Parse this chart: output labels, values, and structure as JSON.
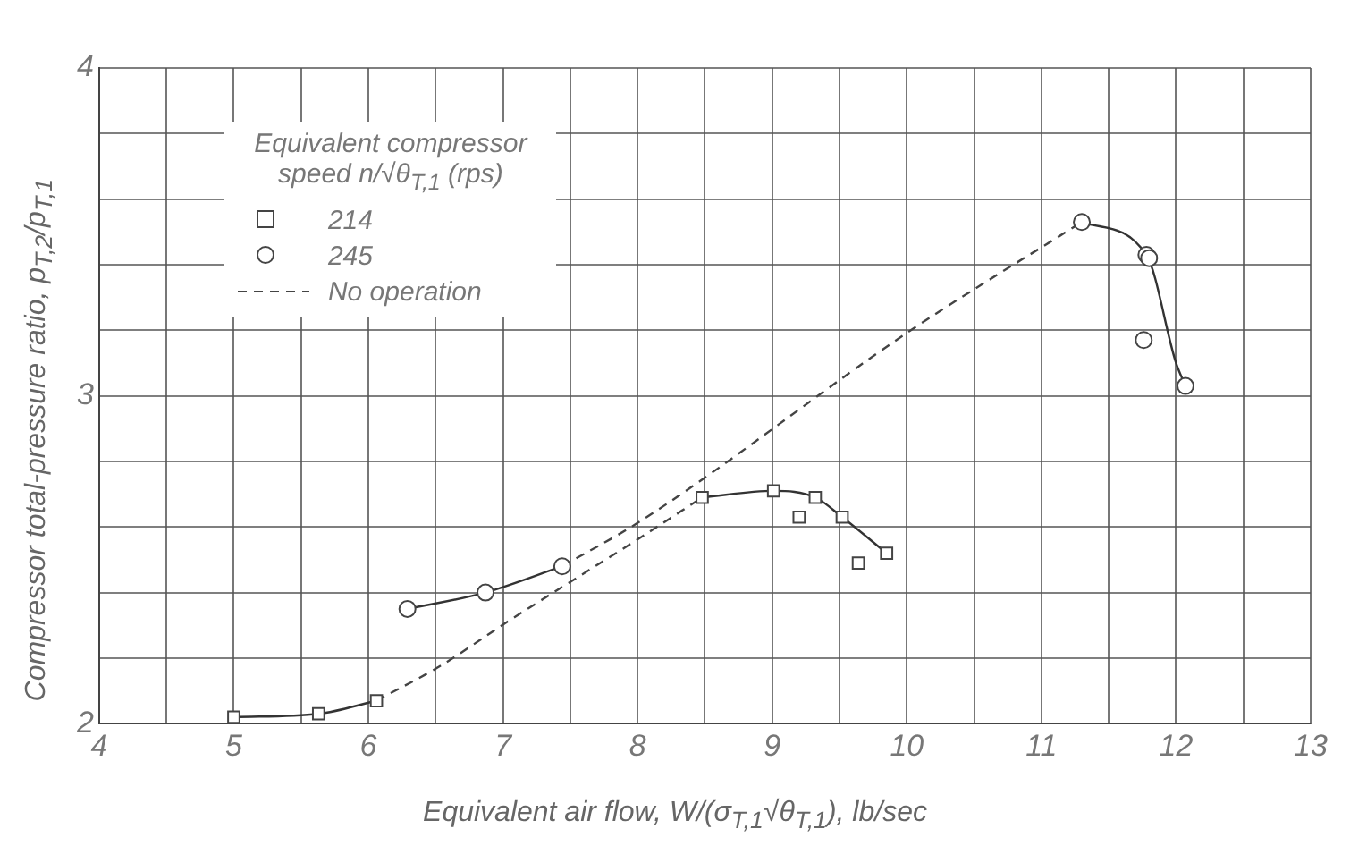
{
  "chart_data": {
    "type": "scatter",
    "xlabel": "Equivalent air flow, W/(σ$_{T,1}$√θ$_{T,1}$), lb/sec",
    "ylabel": "Compressor total-pressure ratio, p$_{T,2}$/p$_{T,1}$",
    "legend_title": "Equivalent compressor speed n/√θ$_{T,1}$ (rps)",
    "legend": "top left",
    "grid": true,
    "xlim": [
      4,
      13
    ],
    "xticks": [
      4,
      {
        "value": 4.5,
        "label": null
      },
      5,
      {
        "value": 5.5,
        "label": null
      },
      6,
      {
        "value": 6.5,
        "label": null
      },
      7,
      {
        "value": 7.5,
        "label": null
      },
      8,
      {
        "value": 8.5,
        "label": null
      },
      9,
      {
        "value": 9.5,
        "label": null
      },
      10,
      {
        "value": 10.5,
        "label": null
      },
      11,
      {
        "value": 11.5,
        "label": null
      },
      12,
      {
        "value": 12.5,
        "label": null
      },
      13
    ],
    "ylim": [
      2,
      4
    ],
    "yticks": [
      2,
      {
        "value": 2.2,
        "label": null
      },
      {
        "value": 2.4,
        "label": null
      },
      {
        "value": 2.6,
        "label": null
      },
      {
        "value": 2.8,
        "label": null
      },
      3,
      {
        "value": 3.2,
        "label": null
      },
      {
        "value": 3.4,
        "label": null
      },
      {
        "value": 3.6,
        "label": null
      },
      {
        "value": 3.8,
        "label": null
      },
      4
    ],
    "series": [
      {
        "name": "214",
        "type": "scatter",
        "marker": "square",
        "color": "#444444",
        "x": [
          5.0,
          5.63,
          6.06,
          8.48,
          9.01,
          9.2,
          9.32,
          9.52,
          9.64,
          9.85
        ],
        "values": [
          2.02,
          2.03,
          2.07,
          2.69,
          2.71,
          2.63,
          2.69,
          2.63,
          2.49,
          2.52
        ]
      },
      {
        "name": "245",
        "type": "scatter",
        "marker": "circle",
        "color": "#444444",
        "x": [
          6.29,
          6.87,
          7.44,
          11.3,
          11.76,
          11.78,
          11.8,
          12.07
        ],
        "values": [
          2.35,
          2.4,
          2.48,
          3.53,
          3.17,
          3.43,
          3.42,
          3.03
        ]
      },
      {
        "name": "No operation",
        "type": "line",
        "marker": "none",
        "line_style": "dashed",
        "color": "#444444",
        "x": [
          6.06,
          6.53,
          7.03,
          8.03,
          8.48
        ],
        "values": [
          2.07,
          2.175,
          2.31,
          2.57,
          2.69
        ]
      },
      {
        "type": "line",
        "marker": "none",
        "line_style": "dashed",
        "color": "#444444",
        "x": [
          7.44,
          8.03,
          10.03,
          11.3
        ],
        "values": [
          2.48,
          2.62,
          3.2,
          3.53
        ]
      },
      {
        "type": "line",
        "marker": "none",
        "line_style": "solid",
        "color": "#333333",
        "x": [
          5.0,
          5.63,
          6.06
        ],
        "values": [
          2.02,
          2.03,
          2.07
        ]
      },
      {
        "type": "line",
        "marker": "none",
        "line_style": "solid",
        "color": "#333333",
        "x": [
          8.48,
          9.01,
          9.32,
          9.52,
          9.85
        ],
        "values": [
          2.69,
          2.71,
          2.69,
          2.63,
          2.52
        ]
      },
      {
        "type": "line",
        "marker": "none",
        "line_style": "solid",
        "color": "#333333",
        "x": [
          6.29,
          6.87,
          7.44
        ],
        "values": [
          2.35,
          2.4,
          2.48
        ]
      },
      {
        "type": "line",
        "marker": "none",
        "line_style": "solid",
        "color": "#333333",
        "x": [
          11.3,
          11.78,
          12.0,
          12.07
        ],
        "values": [
          3.53,
          3.43,
          3.1,
          3.03
        ]
      }
    ]
  }
}
